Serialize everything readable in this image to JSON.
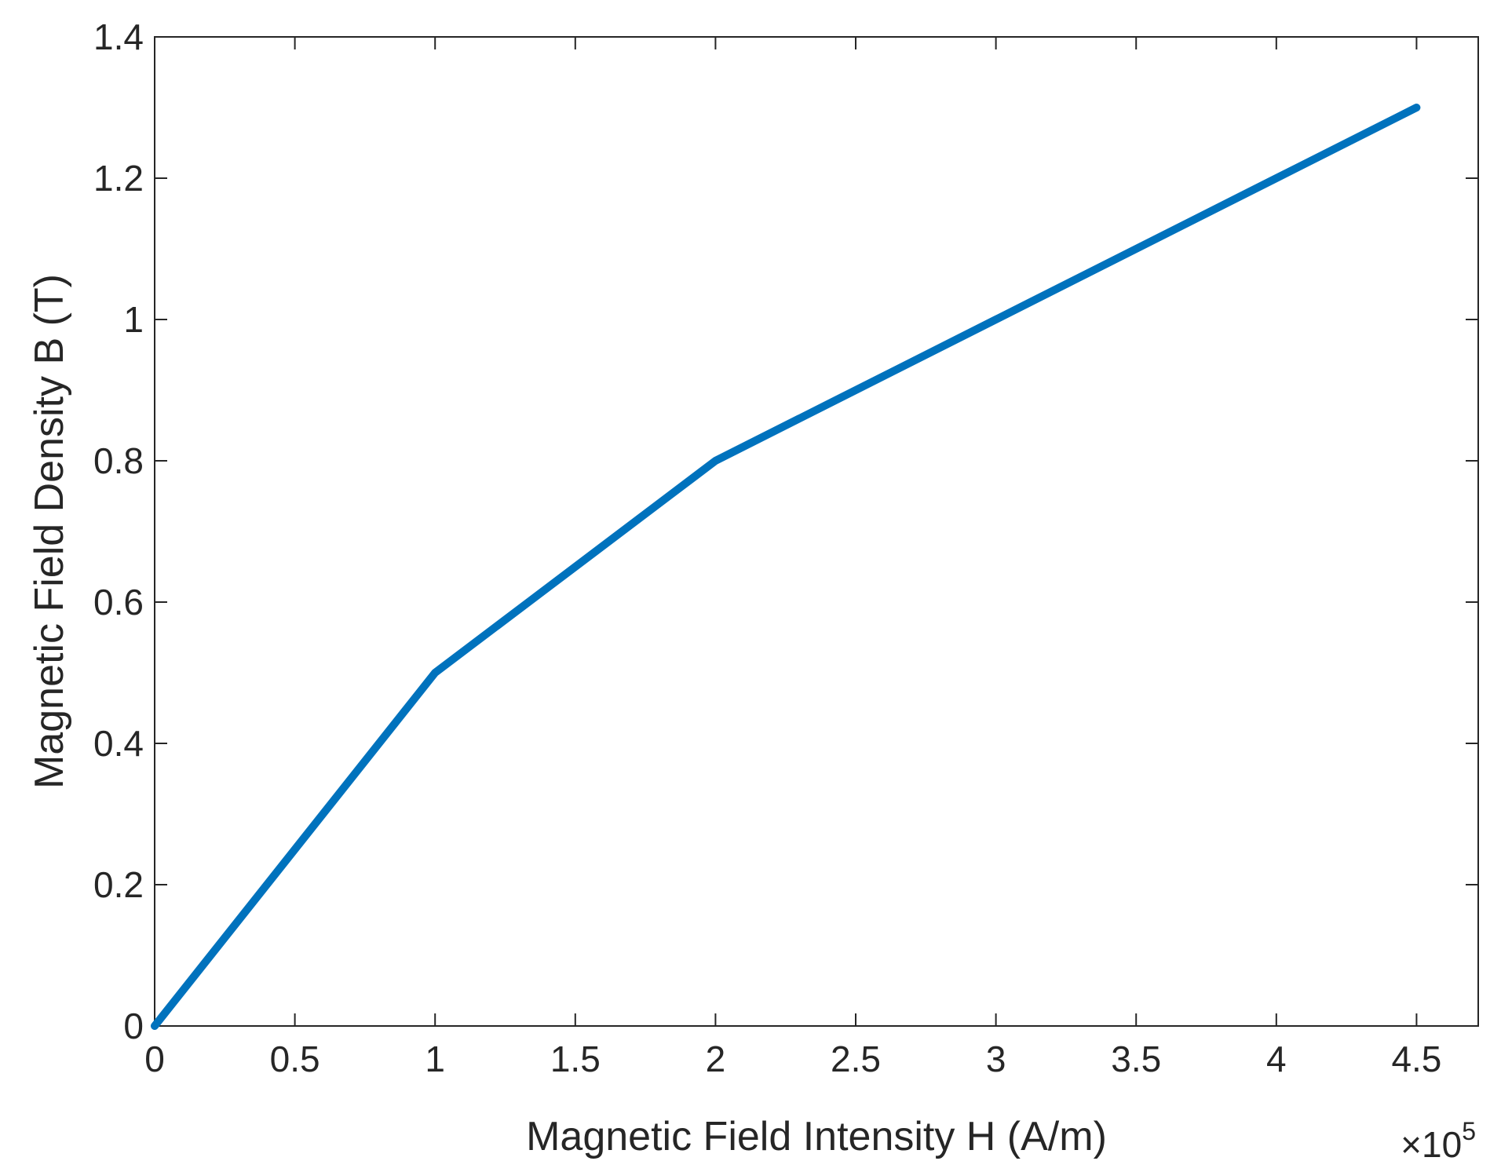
{
  "chart_data": {
    "type": "line",
    "title": "",
    "xlabel": "Magnetic Field Intensity H (A/m)",
    "ylabel": "Magnetic Field Density B (T)",
    "x_exponent_label": "×10",
    "x_exponent_power": "5",
    "xlim": [
      0,
      4.72
    ],
    "ylim": [
      0,
      1.4
    ],
    "x_ticks": [
      0,
      0.5,
      1,
      1.5,
      2,
      2.5,
      3,
      3.5,
      4,
      4.5
    ],
    "x_tick_labels": [
      "0",
      "0.5",
      "1",
      "1.5",
      "2",
      "2.5",
      "3",
      "3.5",
      "4",
      "4.5"
    ],
    "y_ticks": [
      0,
      0.2,
      0.4,
      0.6,
      0.8,
      1,
      1.2,
      1.4
    ],
    "y_tick_labels": [
      "0",
      "0.2",
      "0.4",
      "0.6",
      "0.8",
      "1",
      "1.2",
      "1.4"
    ],
    "grid": false,
    "box": true,
    "series": [
      {
        "x": [
          0,
          1,
          2,
          3,
          4,
          4.5
        ],
        "y": [
          0,
          0.5,
          0.8,
          1.0,
          1.2,
          1.3
        ],
        "color": "#0072BD"
      }
    ]
  }
}
